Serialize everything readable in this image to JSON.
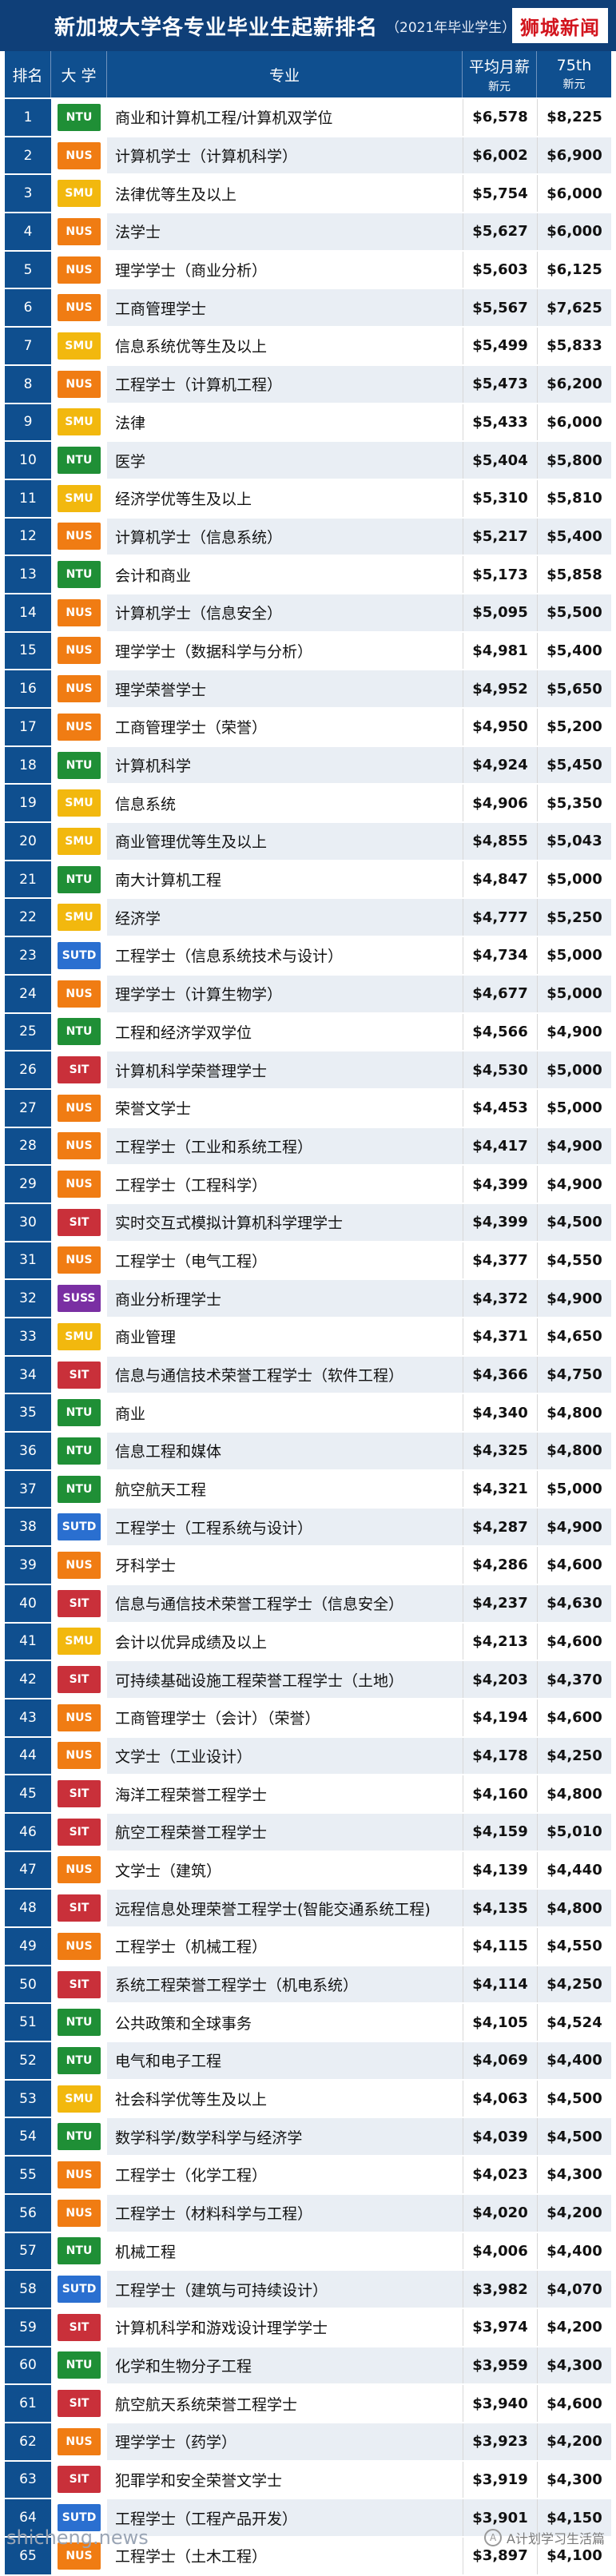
{
  "header": {
    "title": "新加坡大学各专业毕业生起薪排名",
    "subtitle": "（2021年毕业学生）",
    "brand": "狮城新闻"
  },
  "columns": {
    "rank": "排名",
    "university": "大 学",
    "major": "专业",
    "salary": "平均月薪",
    "salary_unit": "新元",
    "p75": "75th",
    "p75_unit": "新元"
  },
  "colors": {
    "NTU": "#1f8f36",
    "NUS": "#f07c13",
    "SMU": "#f2b80e",
    "SUTD": "#2a6fd0",
    "SIT": "#c9303a",
    "SUSS": "#7a2fa3",
    "header": "#0f3f78"
  },
  "rows": [
    {
      "rank": "1",
      "uni": "NTU",
      "major": "商业和计算机工程/计算机双学位",
      "salary": "$6,578",
      "p75": "$8,225"
    },
    {
      "rank": "2",
      "uni": "NUS",
      "major": "计算机学士（计算机科学）",
      "salary": "$6,002",
      "p75": "$6,900"
    },
    {
      "rank": "3",
      "uni": "SMU",
      "major": "法律优等生及以上",
      "salary": "$5,754",
      "p75": "$6,000"
    },
    {
      "rank": "4",
      "uni": "NUS",
      "major": "法学士",
      "salary": "$5,627",
      "p75": "$6,000"
    },
    {
      "rank": "5",
      "uni": "NUS",
      "major": "理学学士（商业分析）",
      "salary": "$5,603",
      "p75": "$6,125"
    },
    {
      "rank": "6",
      "uni": "NUS",
      "major": "工商管理学士",
      "salary": "$5,567",
      "p75": "$7,625"
    },
    {
      "rank": "7",
      "uni": "SMU",
      "major": "信息系统优等生及以上",
      "salary": "$5,499",
      "p75": "$5,833"
    },
    {
      "rank": "8",
      "uni": "NUS",
      "major": "工程学士（计算机工程）",
      "salary": "$5,473",
      "p75": "$6,200"
    },
    {
      "rank": "9",
      "uni": "SMU",
      "major": "法律",
      "salary": "$5,433",
      "p75": "$6,000"
    },
    {
      "rank": "10",
      "uni": "NTU",
      "major": "医学",
      "salary": "$5,404",
      "p75": "$5,800"
    },
    {
      "rank": "11",
      "uni": "SMU",
      "major": "经济学优等生及以上",
      "salary": "$5,310",
      "p75": "$5,810"
    },
    {
      "rank": "12",
      "uni": "NUS",
      "major": "计算机学士（信息系统）",
      "salary": "$5,217",
      "p75": "$5,400"
    },
    {
      "rank": "13",
      "uni": "NTU",
      "major": "会计和商业",
      "salary": "$5,173",
      "p75": "$5,858"
    },
    {
      "rank": "14",
      "uni": "NUS",
      "major": "计算机学士（信息安全）",
      "salary": "$5,095",
      "p75": "$5,500"
    },
    {
      "rank": "15",
      "uni": "NUS",
      "major": "理学学士（数据科学与分析）",
      "salary": "$4,981",
      "p75": "$5,400"
    },
    {
      "rank": "16",
      "uni": "NUS",
      "major": "理学荣誉学士",
      "salary": "$4,952",
      "p75": "$5,650"
    },
    {
      "rank": "17",
      "uni": "NUS",
      "major": "工商管理学士（荣誉）",
      "salary": "$4,950",
      "p75": "$5,200"
    },
    {
      "rank": "18",
      "uni": "NTU",
      "major": "计算机科学",
      "salary": "$4,924",
      "p75": "$5,450"
    },
    {
      "rank": "19",
      "uni": "SMU",
      "major": "信息系统",
      "salary": "$4,906",
      "p75": "$5,350"
    },
    {
      "rank": "20",
      "uni": "SMU",
      "major": "商业管理优等生及以上",
      "salary": "$4,855",
      "p75": "$5,043"
    },
    {
      "rank": "21",
      "uni": "NTU",
      "major": "南大计算机工程",
      "salary": "$4,847",
      "p75": "$5,000"
    },
    {
      "rank": "22",
      "uni": "SMU",
      "major": "经济学",
      "salary": "$4,777",
      "p75": "$5,250"
    },
    {
      "rank": "23",
      "uni": "SUTD",
      "major": "工程学士（信息系统技术与设计）",
      "salary": "$4,734",
      "p75": "$5,000"
    },
    {
      "rank": "24",
      "uni": "NUS",
      "major": "理学学士（计算生物学）",
      "salary": "$4,677",
      "p75": "$5,000"
    },
    {
      "rank": "25",
      "uni": "NTU",
      "major": "工程和经济学双学位",
      "salary": "$4,566",
      "p75": "$4,900"
    },
    {
      "rank": "26",
      "uni": "SIT",
      "major": "计算机科学荣誉理学士",
      "salary": "$4,530",
      "p75": "$5,000"
    },
    {
      "rank": "27",
      "uni": "NUS",
      "major": "荣誉文学士",
      "salary": "$4,453",
      "p75": "$5,000"
    },
    {
      "rank": "28",
      "uni": "NUS",
      "major": "工程学士（工业和系统工程）",
      "salary": "$4,417",
      "p75": "$4,900"
    },
    {
      "rank": "29",
      "uni": "NUS",
      "major": "工程学士（工程科学）",
      "salary": "$4,399",
      "p75": "$4,900"
    },
    {
      "rank": "30",
      "uni": "SIT",
      "major": "实时交互式模拟计算机科学理学士",
      "salary": "$4,399",
      "p75": "$4,500"
    },
    {
      "rank": "31",
      "uni": "NUS",
      "major": "工程学士（电气工程）",
      "salary": "$4,377",
      "p75": "$4,550"
    },
    {
      "rank": "32",
      "uni": "SUSS",
      "major": "商业分析理学士",
      "salary": "$4,372",
      "p75": "$4,900"
    },
    {
      "rank": "33",
      "uni": "SMU",
      "major": "商业管理",
      "salary": "$4,371",
      "p75": "$4,650"
    },
    {
      "rank": "34",
      "uni": "SIT",
      "major": "信息与通信技术荣誉工程学士（软件工程）",
      "salary": "$4,366",
      "p75": "$4,750"
    },
    {
      "rank": "35",
      "uni": "NTU",
      "major": "商业",
      "salary": "$4,340",
      "p75": "$4,800"
    },
    {
      "rank": "36",
      "uni": "NTU",
      "major": "信息工程和媒体",
      "salary": "$4,325",
      "p75": "$4,800"
    },
    {
      "rank": "37",
      "uni": "NTU",
      "major": "航空航天工程",
      "salary": "$4,321",
      "p75": "$5,000"
    },
    {
      "rank": "38",
      "uni": "SUTD",
      "major": "工程学士（工程系统与设计）",
      "salary": "$4,287",
      "p75": "$4,900"
    },
    {
      "rank": "39",
      "uni": "NUS",
      "major": "牙科学士",
      "salary": "$4,286",
      "p75": "$4,600"
    },
    {
      "rank": "40",
      "uni": "SIT",
      "major": "信息与通信技术荣誉工程学士（信息安全）",
      "salary": "$4,237",
      "p75": "$4,630"
    },
    {
      "rank": "41",
      "uni": "SMU",
      "major": "会计以优异成绩及以上",
      "salary": "$4,213",
      "p75": "$4,600"
    },
    {
      "rank": "42",
      "uni": "SIT",
      "major": "可持续基础设施工程荣誉工程学士（土地）",
      "salary": "$4,203",
      "p75": "$4,370"
    },
    {
      "rank": "43",
      "uni": "NUS",
      "major": "工商管理学士（会计）（荣誉）",
      "salary": "$4,194",
      "p75": "$4,600"
    },
    {
      "rank": "44",
      "uni": "NUS",
      "major": "文学士（工业设计）",
      "salary": "$4,178",
      "p75": "$4,250"
    },
    {
      "rank": "45",
      "uni": "SIT",
      "major": "海洋工程荣誉工程学士",
      "salary": "$4,160",
      "p75": "$4,800"
    },
    {
      "rank": "46",
      "uni": "SIT",
      "major": "航空工程荣誉工程学士",
      "salary": "$4,159",
      "p75": "$5,010"
    },
    {
      "rank": "47",
      "uni": "NUS",
      "major": "文学士（建筑）",
      "salary": "$4,139",
      "p75": "$4,440"
    },
    {
      "rank": "48",
      "uni": "SIT",
      "major": "远程信息处理荣誉工程学士(智能交通系统工程)",
      "salary": "$4,135",
      "p75": "$4,800"
    },
    {
      "rank": "49",
      "uni": "NUS",
      "major": "工程学士（机械工程）",
      "salary": "$4,115",
      "p75": "$4,550"
    },
    {
      "rank": "50",
      "uni": "SIT",
      "major": "系统工程荣誉工程学士（机电系统）",
      "salary": "$4,114",
      "p75": "$4,250"
    },
    {
      "rank": "51",
      "uni": "NTU",
      "major": "公共政策和全球事务",
      "salary": "$4,105",
      "p75": "$4,524"
    },
    {
      "rank": "52",
      "uni": "NTU",
      "major": "电气和电子工程",
      "salary": "$4,069",
      "p75": "$4,400"
    },
    {
      "rank": "53",
      "uni": "SMU",
      "major": "社会科学优等生及以上",
      "salary": "$4,063",
      "p75": "$4,500"
    },
    {
      "rank": "54",
      "uni": "NTU",
      "major": "数学科学/数学科学与经济学",
      "salary": "$4,039",
      "p75": "$4,500"
    },
    {
      "rank": "55",
      "uni": "NUS",
      "major": "工程学士（化学工程）",
      "salary": "$4,023",
      "p75": "$4,300"
    },
    {
      "rank": "56",
      "uni": "NUS",
      "major": "工程学士（材料科学与工程）",
      "salary": "$4,020",
      "p75": "$4,200"
    },
    {
      "rank": "57",
      "uni": "NTU",
      "major": "机械工程",
      "salary": "$4,006",
      "p75": "$4,400"
    },
    {
      "rank": "58",
      "uni": "SUTD",
      "major": "工程学士（建筑与可持续设计）",
      "salary": "$3,982",
      "p75": "$4,070"
    },
    {
      "rank": "59",
      "uni": "SIT",
      "major": "计算机科学和游戏设计理学学士",
      "salary": "$3,974",
      "p75": "$4,200"
    },
    {
      "rank": "60",
      "uni": "NTU",
      "major": "化学和生物分子工程",
      "salary": "$3,959",
      "p75": "$4,300"
    },
    {
      "rank": "61",
      "uni": "SIT",
      "major": "航空航天系统荣誉工程学士",
      "salary": "$3,940",
      "p75": "$4,600"
    },
    {
      "rank": "62",
      "uni": "NUS",
      "major": "理学学士（药学）",
      "salary": "$3,923",
      "p75": "$4,200"
    },
    {
      "rank": "63",
      "uni": "SIT",
      "major": "犯罪学和安全荣誉文学士",
      "salary": "$3,919",
      "p75": "$4,300"
    },
    {
      "rank": "64",
      "uni": "SUTD",
      "major": "工程学士（工程产品开发）",
      "salary": "$3,901",
      "p75": "$4,150"
    },
    {
      "rank": "65",
      "uni": "NUS",
      "major": "工程学士（土木工程）",
      "salary": "$3,897",
      "p75": "$4,100"
    }
  ],
  "watermark": "shicheng.news",
  "credit": "A计划学习生活篇"
}
